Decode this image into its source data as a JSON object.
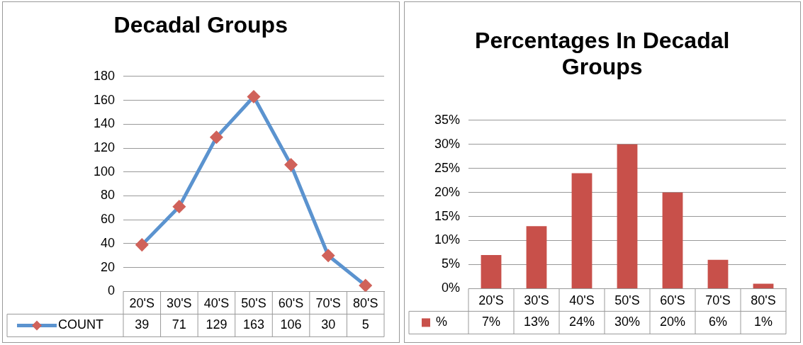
{
  "chart_data": [
    {
      "type": "line",
      "title": "Decadal Groups",
      "categories": [
        "20'S",
        "30'S",
        "40'S",
        "50'S",
        "60'S",
        "70'S",
        "80'S"
      ],
      "series": [
        {
          "name": "COUNT",
          "color": "#5b93cf",
          "colors": [
            "#d0625a",
            "#d0625a",
            "#d0625a",
            "#d0625a",
            "#d0625a",
            "#d0625a",
            "#d0625a"
          ],
          "values": [
            39,
            71,
            129,
            163,
            106,
            30,
            5
          ]
        }
      ],
      "ylim": [
        0,
        180
      ],
      "yticks": [
        0,
        20,
        40,
        60,
        80,
        100,
        120,
        140,
        160,
        180
      ],
      "grid": "y",
      "marker": "diamond",
      "line_style": "solid",
      "legend": "bottom",
      "data_labels": true
    },
    {
      "type": "bar",
      "title": "Percentages In Decadal Groups",
      "categories": [
        "20'S",
        "30'S",
        "40'S",
        "50'S",
        "60'S",
        "70'S",
        "80'S"
      ],
      "series": [
        {
          "name": "%",
          "color": "#c8504a",
          "values": [
            7,
            13,
            24,
            30,
            20,
            6,
            1
          ],
          "value_labels": [
            "7%",
            "13%",
            "24%",
            "30%",
            "20%",
            "6%",
            "1%"
          ]
        }
      ],
      "ylim": [
        0,
        35
      ],
      "yticks": [
        {
          "value": 0,
          "label": "0%"
        },
        {
          "value": 5,
          "label": "5%"
        },
        {
          "value": 10,
          "label": "10%"
        },
        {
          "value": 15,
          "label": "15%"
        },
        {
          "value": 20,
          "label": "20%"
        },
        {
          "value": 25,
          "label": "25%"
        },
        {
          "value": 30,
          "label": "30%"
        },
        {
          "value": 35,
          "label": "35%"
        }
      ],
      "grid": "y",
      "legend": "bottom"
    }
  ]
}
